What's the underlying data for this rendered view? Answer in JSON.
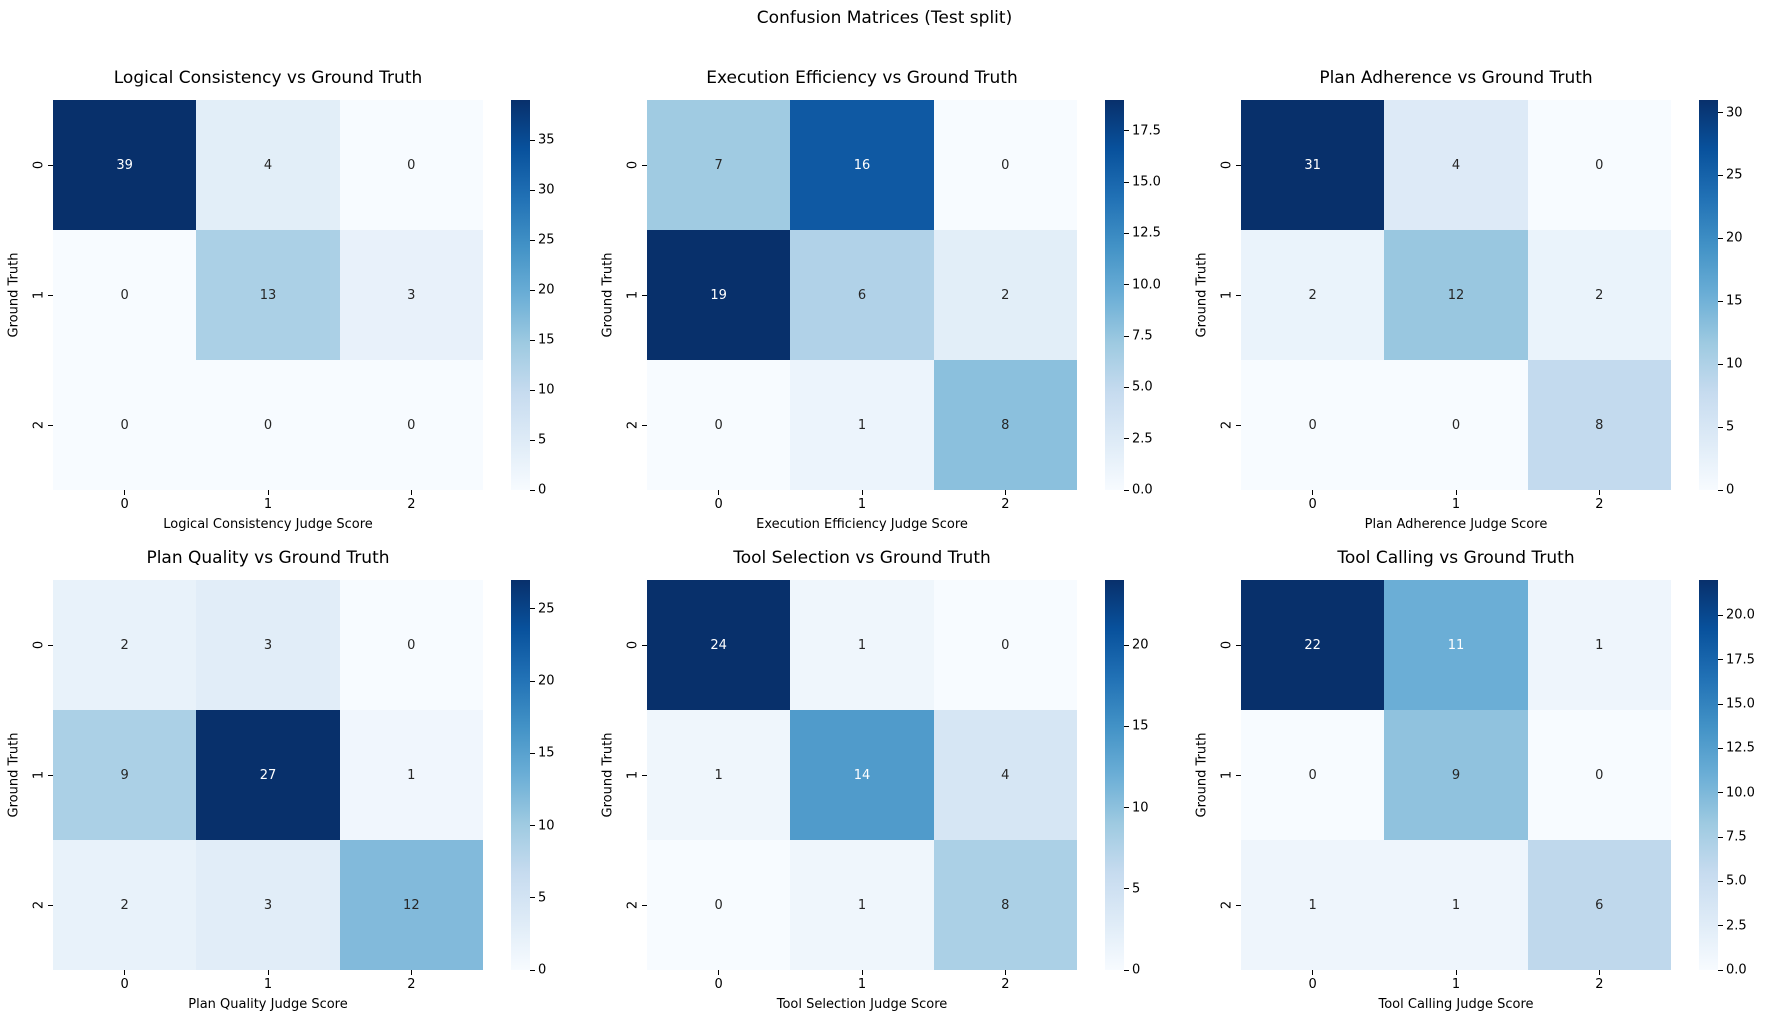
{
  "figure_title": "Confusion Matrices (Test split)",
  "chart_data": {
    "type": "heatmap",
    "title": "Confusion Matrices (Test split)",
    "layout": {
      "rows": 2,
      "cols": 3,
      "colormap": "Blues",
      "colorbar": "per-subplot, right side",
      "grid": false
    },
    "shared": {
      "ylabel": "Ground Truth",
      "x_ticks": [
        "0",
        "1",
        "2"
      ],
      "y_ticks": [
        "0",
        "1",
        "2"
      ]
    },
    "subplots": [
      {
        "title": "Logical Consistency vs Ground Truth",
        "xlabel": "Logical Consistency Judge Score",
        "matrix": [
          [
            39,
            4,
            0
          ],
          [
            0,
            13,
            3
          ],
          [
            0,
            0,
            0
          ]
        ],
        "vmin": 0,
        "vmax": 39,
        "colorbar_ticks": [
          "0",
          "5",
          "10",
          "15",
          "20",
          "25",
          "30",
          "35"
        ]
      },
      {
        "title": "Execution Efficiency vs Ground Truth",
        "xlabel": "Execution Efficiency Judge Score",
        "matrix": [
          [
            7,
            16,
            0
          ],
          [
            19,
            6,
            2
          ],
          [
            0,
            1,
            8
          ]
        ],
        "vmin": 0,
        "vmax": 19,
        "colorbar_ticks": [
          "0.0",
          "2.5",
          "5.0",
          "7.5",
          "10.0",
          "12.5",
          "15.0",
          "17.5"
        ]
      },
      {
        "title": "Plan Adherence vs Ground Truth",
        "xlabel": "Plan Adherence Judge Score",
        "matrix": [
          [
            31,
            4,
            0
          ],
          [
            2,
            12,
            2
          ],
          [
            0,
            0,
            8
          ]
        ],
        "vmin": 0,
        "vmax": 31,
        "colorbar_ticks": [
          "0",
          "5",
          "10",
          "15",
          "20",
          "25",
          "30"
        ]
      },
      {
        "title": "Plan Quality vs Ground Truth",
        "xlabel": "Plan Quality Judge Score",
        "matrix": [
          [
            2,
            3,
            0
          ],
          [
            9,
            27,
            1
          ],
          [
            2,
            3,
            12
          ]
        ],
        "vmin": 0,
        "vmax": 27,
        "colorbar_ticks": [
          "0",
          "5",
          "10",
          "15",
          "20",
          "25"
        ]
      },
      {
        "title": "Tool Selection vs Ground Truth",
        "xlabel": "Tool Selection Judge Score",
        "matrix": [
          [
            24,
            1,
            0
          ],
          [
            1,
            14,
            4
          ],
          [
            0,
            1,
            8
          ]
        ],
        "vmin": 0,
        "vmax": 24,
        "colorbar_ticks": [
          "0",
          "5",
          "10",
          "15",
          "20"
        ]
      },
      {
        "title": "Tool Calling vs Ground Truth",
        "xlabel": "Tool Calling Judge Score",
        "matrix": [
          [
            22,
            11,
            1
          ],
          [
            0,
            9,
            0
          ],
          [
            1,
            1,
            6
          ]
        ],
        "vmin": 0,
        "vmax": 22,
        "colorbar_ticks": [
          "0.0",
          "2.5",
          "5.0",
          "7.5",
          "10.0",
          "12.5",
          "15.0",
          "17.5",
          "20.0"
        ]
      }
    ]
  },
  "colors": {
    "background": "#ffffff",
    "text": "#000000",
    "annot_dark": "#262626",
    "annot_light": "#ffffff",
    "blues_colormap_stops": [
      "#f7fbff",
      "#deebf7",
      "#c6dbef",
      "#9ecae1",
      "#6baed6",
      "#4292c6",
      "#2171b5",
      "#08519c",
      "#08306b"
    ]
  }
}
